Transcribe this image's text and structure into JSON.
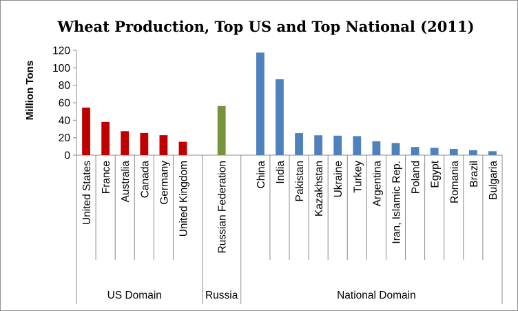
{
  "chart_data": {
    "type": "bar",
    "title": "Wheat Production, Top US and Top National (2011)",
    "xlabel": "",
    "ylabel": "Million Tons",
    "ylim": [
      0,
      120
    ],
    "yticks": [
      0,
      20,
      40,
      60,
      80,
      100,
      120
    ],
    "grid": false,
    "legend": "none",
    "groups": [
      {
        "name": "US Domain",
        "color": "#c00000",
        "categories": [
          "United States",
          "France",
          "Australia",
          "Canada",
          "Germany",
          "United Kingdom"
        ],
        "values": [
          54.4,
          38.0,
          27.4,
          25.3,
          22.8,
          15.3
        ]
      },
      {
        "name": "Russia",
        "color": "#77933c",
        "categories": [
          "Russian Federation"
        ],
        "values": [
          56.2
        ]
      },
      {
        "name": "National Domain",
        "color": "#4f81bd",
        "categories": [
          "China",
          "India",
          "Pakistan",
          "Kazakhstan",
          "Ukraine",
          "Turkey",
          "Argentina",
          "Iran, Islamic Rep.",
          "Poland",
          "Egypt",
          "Romania",
          "Brazil",
          "Bulgaria"
        ],
        "values": [
          117.4,
          86.9,
          25.2,
          22.7,
          22.3,
          21.8,
          15.9,
          13.9,
          9.3,
          8.4,
          7.1,
          5.7,
          4.5
        ]
      }
    ]
  }
}
